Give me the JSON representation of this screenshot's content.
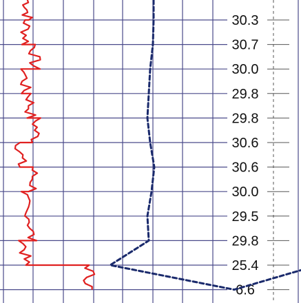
{
  "chart_data": {
    "type": "line",
    "title": "",
    "xlabel": "",
    "ylabel": "",
    "grid": true,
    "depth_labels": [
      "30.3",
      "30.7",
      "30.0",
      "29.8",
      "29.8",
      "30.6",
      "30.6",
      "30.0",
      "29.5",
      "29.8",
      "25.4",
      "6.6"
    ],
    "series": [
      {
        "color": "#e02020",
        "style": "solid",
        "values": [
          40,
          38,
          50,
          36,
          44,
          52,
          30,
          48,
          35,
          45,
          36,
          130
        ]
      },
      {
        "color": "#1a2a6c",
        "style": "dashed",
        "values": [
          223,
          222,
          218,
          216,
          214,
          218,
          224,
          220,
          214,
          216,
          160,
          340
        ]
      }
    ],
    "colors": {
      "grid": "#4a4a8a",
      "label_guide": "#555555",
      "text": "#111111"
    }
  }
}
